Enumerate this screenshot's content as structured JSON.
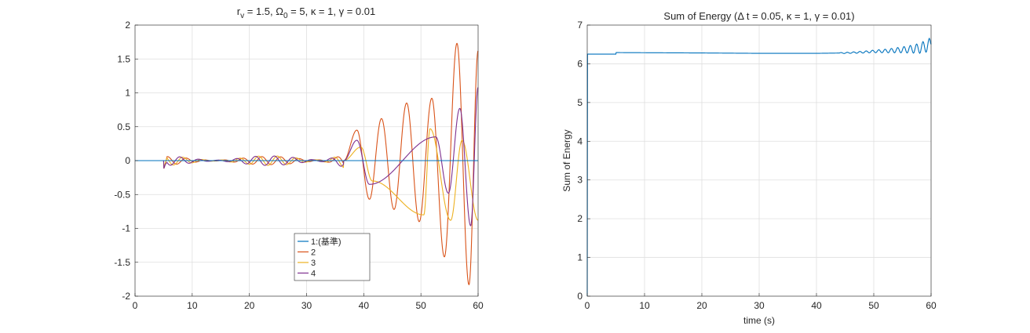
{
  "chart_data": [
    {
      "type": "line",
      "title": "r_v = 1.5, Ω_0 = 5, κ = 1, γ = 0.01",
      "title_parts": {
        "r": "r",
        "r_sub": "v",
        "eq1": " = 1.5, ",
        "omega": "Ω",
        "omega_sub": "0",
        "rest": " = 5, κ = 1, γ = 0.01"
      },
      "xlabel": "",
      "ylabel": "",
      "xlim": [
        0,
        60
      ],
      "ylim": [
        -2,
        2
      ],
      "xticks": [
        "0",
        "10",
        "20",
        "30",
        "40",
        "50",
        "60"
      ],
      "yticks": [
        "-2",
        "-1.5",
        "-1",
        "-0.5",
        "0",
        "0.5",
        "1",
        "1.5",
        "2"
      ],
      "grid": true,
      "legend_position": "bottom-center",
      "series": [
        {
          "name": "1:(基準)",
          "color": "#0072BD"
        },
        {
          "name": "2",
          "color": "#D95319"
        },
        {
          "name": "3",
          "color": "#EDB120"
        },
        {
          "name": "4",
          "color": "#7E2F8E"
        }
      ],
      "series_model": {
        "start": 5.0,
        "initial": -0.13,
        "growth_t0": 24,
        "growth_rate": 0.075,
        "oscillation_period": 3.3,
        "s2_peaks": [
          [
            38.8,
            0.45
          ],
          [
            41,
            -0.57
          ],
          [
            43.1,
            0.62
          ],
          [
            45.3,
            -0.72
          ],
          [
            47.5,
            0.85
          ],
          [
            49.7,
            -0.9
          ],
          [
            51.9,
            0.92
          ],
          [
            54.1,
            -1.42
          ],
          [
            56.3,
            1.73
          ],
          [
            58.4,
            -1.83
          ],
          [
            60,
            1.62
          ]
        ],
        "s3_peaks": [
          [
            39.5,
            0.2
          ],
          [
            41.5,
            -0.3
          ],
          [
            50.5,
            -0.8
          ],
          [
            51.6,
            0.47
          ],
          [
            55.2,
            -0.88
          ],
          [
            57.2,
            0.3
          ],
          [
            60,
            -0.88
          ]
        ],
        "s4_peaks": [
          [
            38.8,
            0.3
          ],
          [
            41,
            -0.35
          ],
          [
            52.6,
            0.35
          ],
          [
            54.8,
            -0.48
          ],
          [
            56.8,
            0.77
          ],
          [
            58.7,
            -0.96
          ],
          [
            60,
            1.08
          ]
        ]
      }
    },
    {
      "type": "line",
      "title": "Sum of Energy (Δ t = 0.05, κ = 1, γ = 0.01)",
      "xlabel": "time (s)",
      "ylabel": "Sum of Energy",
      "xlim": [
        0,
        60
      ],
      "ylim": [
        0,
        7
      ],
      "xticks": [
        "0",
        "10",
        "20",
        "30",
        "40",
        "50",
        "60"
      ],
      "yticks": [
        "0",
        "1",
        "2",
        "3",
        "4",
        "5",
        "6",
        "7"
      ],
      "grid": true,
      "series": [
        {
          "name": "",
          "color": "#0072BD",
          "points": [
            [
              0,
              0
            ],
            [
              0.05,
              6.25
            ],
            [
              5,
              6.25
            ],
            [
              5.05,
              6.29
            ],
            [
              20,
              6.28
            ],
            [
              30,
              6.27
            ],
            [
              40,
              6.27
            ],
            [
              45,
              6.28
            ],
            [
              48,
              6.3
            ],
            [
              50,
              6.32
            ],
            [
              52,
              6.33
            ],
            [
              54,
              6.35
            ],
            [
              56,
              6.37
            ],
            [
              58,
              6.4
            ],
            [
              60,
              6.5
            ]
          ]
        }
      ]
    }
  ]
}
